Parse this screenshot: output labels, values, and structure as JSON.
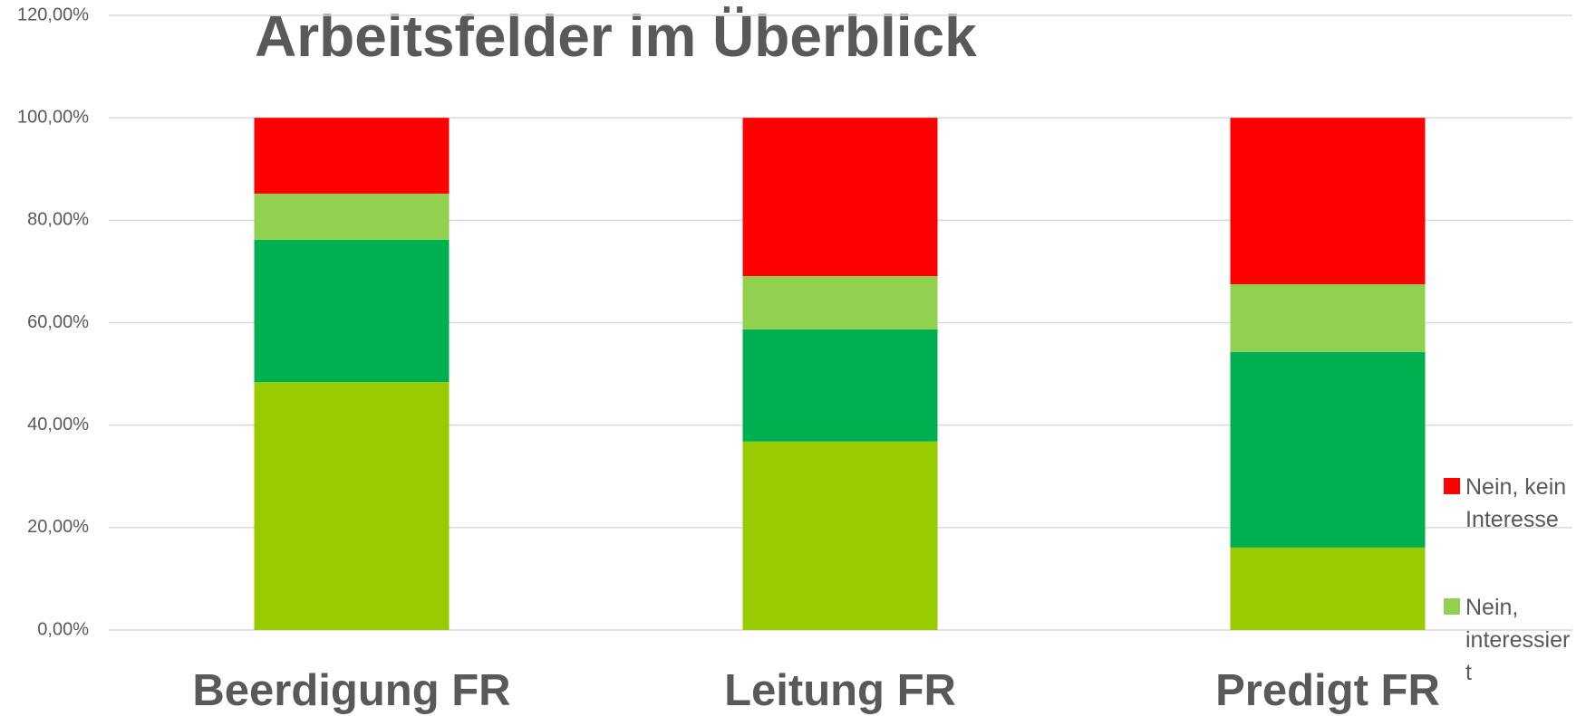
{
  "chart_data": {
    "type": "stacked_bar",
    "title": "Arbeitsfelder im Überblick",
    "categories": [
      "Beerdigung FR",
      "Leitung FR",
      "Predigt FR"
    ],
    "series": [
      {
        "color": "#99cc00",
        "values": [
          48.4,
          36.8,
          16.1
        ]
      },
      {
        "color": "#00b050",
        "values": [
          27.8,
          21.9,
          38.2
        ]
      },
      {
        "name": "Nein, interessiert",
        "color": "#92d050",
        "values": [
          9.0,
          10.4,
          13.2
        ]
      },
      {
        "name": "Nein, kein Interesse",
        "color": "#ff0000",
        "values": [
          14.8,
          30.9,
          32.5
        ]
      }
    ],
    "ylim": [
      0,
      120
    ],
    "yticks": [
      {
        "value": 0,
        "label": "0,00%"
      },
      {
        "value": 20,
        "label": "20,00%"
      },
      {
        "value": 40,
        "label": "40,00%"
      },
      {
        "value": 60,
        "label": "60,00%"
      },
      {
        "value": 80,
        "label": "80,00%"
      },
      {
        "value": 100,
        "label": "100,00%"
      },
      {
        "value": 120,
        "label": "120,00%"
      }
    ],
    "grid": true,
    "legend": "right"
  }
}
